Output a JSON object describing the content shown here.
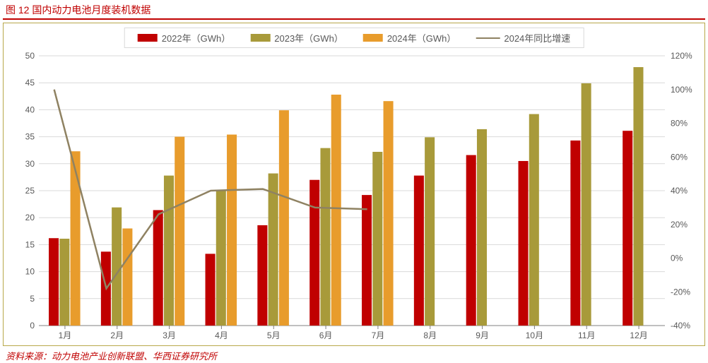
{
  "title": "图 12 国内动力电池月度装机数据",
  "source": "资料来源：动力电池产业创新联盟、华西证券研究所",
  "chart": {
    "type": "bar+line",
    "background_color": "#ffffff",
    "border_color": "#b8a84a",
    "grid_color": "#d9d9d9",
    "axis_text_color": "#595959",
    "title_color": "#c00000",
    "categories": [
      "1月",
      "2月",
      "3月",
      "4月",
      "5月",
      "6月",
      "7月",
      "8月",
      "9月",
      "10月",
      "11月",
      "12月"
    ],
    "y_left": {
      "min": 0,
      "max": 50,
      "step": 5,
      "label": ""
    },
    "y_right": {
      "min": -40,
      "max": 120,
      "step": 20,
      "suffix": "%",
      "label": ""
    },
    "series": [
      {
        "name": "2022年（GWh）",
        "type": "bar",
        "color": "#c00000",
        "values": [
          16.2,
          13.7,
          21.4,
          13.3,
          18.6,
          27.0,
          24.2,
          27.8,
          31.6,
          30.5,
          34.3,
          36.1
        ]
      },
      {
        "name": "2023年（GWh）",
        "type": "bar",
        "color": "#a89a3a",
        "values": [
          16.1,
          21.9,
          27.8,
          25.1,
          28.2,
          32.9,
          32.2,
          34.9,
          36.4,
          39.2,
          44.9,
          47.9
        ]
      },
      {
        "name": "2024年（GWh）",
        "type": "bar",
        "color": "#e89c2c",
        "values": [
          32.3,
          18.0,
          35.0,
          35.4,
          39.9,
          42.8,
          41.6,
          null,
          null,
          null,
          null,
          null
        ]
      },
      {
        "name": "2024年同比增速",
        "type": "line",
        "color": "#8f8262",
        "axis": "right",
        "values": [
          100,
          -18,
          26,
          40,
          41,
          30,
          29,
          null,
          null,
          null,
          null,
          null
        ]
      }
    ],
    "legend": {
      "items": [
        {
          "label": "2022年（GWh）",
          "kind": "bar",
          "color": "#c00000"
        },
        {
          "label": "2023年（GWh）",
          "kind": "bar",
          "color": "#a89a3a"
        },
        {
          "label": "2024年（GWh）",
          "kind": "bar",
          "color": "#e89c2c"
        },
        {
          "label": "2024年同比增速",
          "kind": "line",
          "color": "#8f8262"
        }
      ]
    },
    "bar_group_width": 0.62,
    "font_size_axis": 12,
    "font_size_legend": 13
  }
}
